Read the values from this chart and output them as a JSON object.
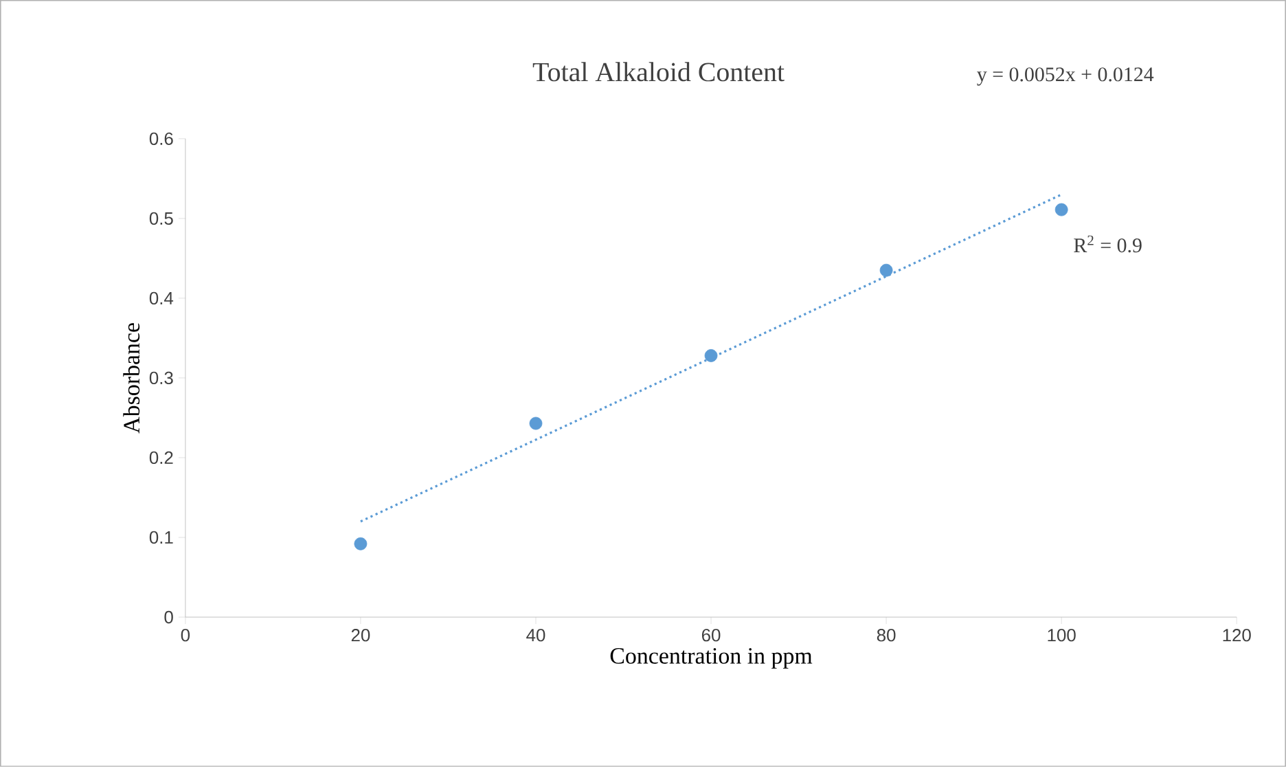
{
  "chart_data": {
    "type": "scatter",
    "title": "Total Alkaloid Content",
    "xlabel": "Concentration in ppm",
    "ylabel": "Absorbance",
    "annotations": [
      "y = 0.0052x + 0.0124",
      "R$^{2}$ = 0.9"
    ],
    "series": [
      {
        "color": "#5b9bd5",
        "marker": "circle",
        "x": [
          20,
          40,
          60,
          80,
          100
        ],
        "values": [
          0.092,
          0.243,
          0.328,
          0.435,
          0.511
        ]
      },
      {
        "type": "line",
        "color": "#5b9bd5",
        "marker": "none",
        "line_style": "dotted",
        "x": [
          20,
          100
        ],
        "values": [
          0.12,
          0.53
        ]
      }
    ],
    "xlim": [
      0,
      120
    ],
    "xticks": [
      0,
      20,
      40,
      60,
      80,
      100,
      120
    ],
    "ylim": [
      0,
      0.6
    ],
    "yticks": [
      0,
      0.1,
      0.2,
      0.3,
      0.4,
      0.5,
      0.6
    ],
    "grid": false
  }
}
